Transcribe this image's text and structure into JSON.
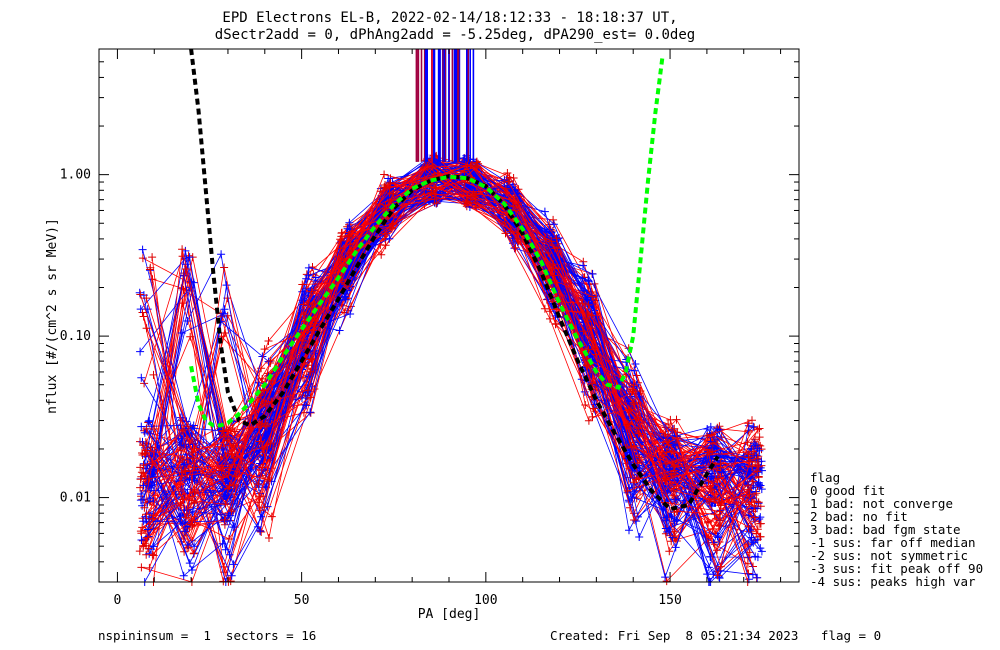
{
  "chart_data": {
    "type": "scatter",
    "title": "EPD Electrons EL-B, 2022-02-14/18:12:33 - 18:18:37 UT,",
    "subtitle": "dSectr2add = 0, dPhAng2add = -5.25deg, dPA290_est=   0.0deg",
    "xlabel": "PA [deg]",
    "ylabel": "nflux [#/(cm^2 s sr MeV)]",
    "xlim": [
      -5,
      185
    ],
    "ylim": [
      0.003,
      6.0
    ],
    "yscale": "log",
    "x_ticks": [
      0,
      50,
      100,
      150
    ],
    "x_tick_labels": [
      "0",
      "50",
      "100",
      "150"
    ],
    "y_ticks": [
      0.01,
      0.1,
      1.0
    ],
    "y_tick_labels": [
      "0.01",
      "0.10",
      "1.00"
    ],
    "grid": false,
    "colors": {
      "red_traces": "#ff0000",
      "blue_traces": "#0000ff",
      "fit_black": "#000000",
      "fit_green": "#00ff00",
      "markers_red": "#8b0000",
      "markers_blue": "#0000ff"
    },
    "series": [
      {
        "color": "#000000",
        "style": "dashed",
        "x": [
          20,
          22,
          24,
          26,
          28,
          30,
          33,
          36,
          40,
          45,
          50,
          55,
          60,
          65,
          70,
          75,
          80,
          85,
          90,
          95,
          100,
          105,
          110,
          115,
          120,
          125,
          130,
          135,
          140,
          145,
          150,
          155,
          160,
          163
        ],
        "y": [
          6.0,
          2.5,
          0.8,
          0.25,
          0.09,
          0.045,
          0.03,
          0.028,
          0.032,
          0.045,
          0.07,
          0.11,
          0.17,
          0.27,
          0.42,
          0.62,
          0.8,
          0.92,
          0.98,
          0.95,
          0.85,
          0.65,
          0.43,
          0.25,
          0.13,
          0.07,
          0.04,
          0.025,
          0.016,
          0.011,
          0.0085,
          0.009,
          0.014,
          0.018
        ]
      },
      {
        "color": "#00ff00",
        "style": "dashed",
        "x": [
          20,
          22,
          24,
          26,
          28,
          30,
          33,
          36,
          40,
          45,
          50,
          55,
          60,
          65,
          70,
          75,
          80,
          85,
          90,
          95,
          100,
          105,
          110,
          115,
          120,
          125,
          130,
          133,
          136,
          138,
          140,
          142,
          144,
          146,
          148
        ],
        "y": [
          0.065,
          0.038,
          0.03,
          0.028,
          0.028,
          0.029,
          0.033,
          0.039,
          0.05,
          0.075,
          0.11,
          0.16,
          0.23,
          0.34,
          0.48,
          0.65,
          0.82,
          0.92,
          0.97,
          0.95,
          0.84,
          0.66,
          0.46,
          0.29,
          0.16,
          0.095,
          0.06,
          0.05,
          0.048,
          0.06,
          0.1,
          0.3,
          0.9,
          2.4,
          5.5
        ]
      }
    ],
    "legend": {
      "position": "right-bottom",
      "title": "flag",
      "entries": [
        " 0 good fit",
        " 1 bad: not converge",
        " 2 bad: no fit",
        " 3 bad: bad fgm state",
        "-1 sus: far off median",
        "-2 sus: not symmetric",
        "-3 sus: fit peak off 90",
        "-4 sus: peaks high var"
      ]
    }
  },
  "footer": {
    "left": "nspininsum =  1  sectors = 16",
    "right": "Created: Fri Sep  8 05:21:34 2023   flag = 0"
  }
}
